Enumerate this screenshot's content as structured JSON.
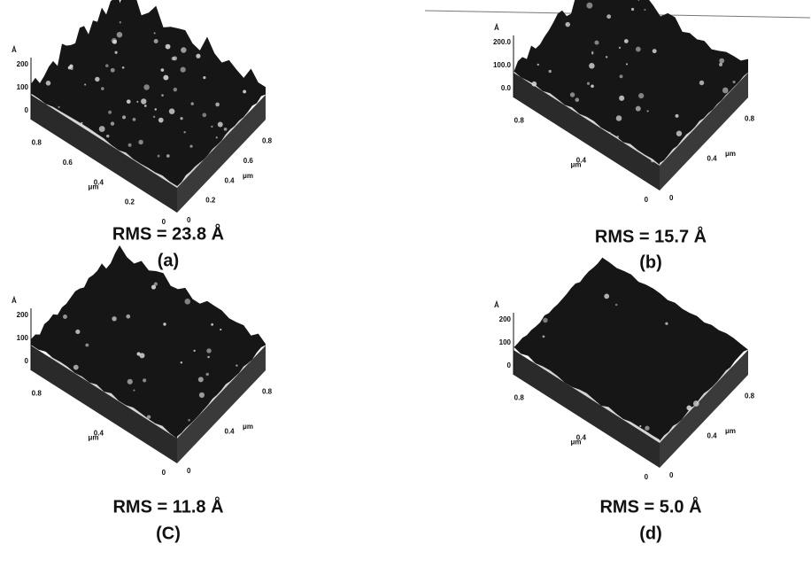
{
  "panels": [
    {
      "caption": "RMS = 23.8 Å",
      "label": "(a)",
      "z_unit": "Å",
      "z_ticks": [
        "200",
        "100",
        "0"
      ],
      "left_ticks": [
        "0.8",
        "0.6",
        "0.4",
        "0.2",
        "0"
      ],
      "right_ticks": [
        "0",
        "0.2",
        "0.4",
        "0.6",
        "0.8"
      ],
      "x_unit": "μm",
      "y_unit": "μm"
    },
    {
      "caption": "RMS = 15.7 Å",
      "label": "(b)",
      "z_unit": "Å",
      "z_ticks": [
        "200.0",
        "100.0",
        "0.0"
      ],
      "left_ticks": [
        "0.8",
        "0.4",
        "0"
      ],
      "right_ticks": [
        "0",
        "0.4",
        "0.8"
      ],
      "x_unit": "μm",
      "y_unit": "μm"
    },
    {
      "caption": "RMS = 11.8 Å",
      "label": "(C)",
      "z_unit": "Å",
      "z_ticks": [
        "200",
        "100",
        "0"
      ],
      "left_ticks": [
        "0.8",
        "0.4",
        "0"
      ],
      "right_ticks": [
        "0",
        "0.4",
        "0.8"
      ],
      "x_unit": "μm",
      "y_unit": "μm"
    },
    {
      "caption": "RMS = 5.0 Å",
      "label": "(d)",
      "z_unit": "Å",
      "z_ticks": [
        "200",
        "100",
        "0"
      ],
      "left_ticks": [
        "0.8",
        "0.4",
        "0"
      ],
      "right_ticks": [
        "0",
        "0.4",
        "0.8"
      ],
      "x_unit": "μm",
      "y_unit": "μm"
    }
  ]
}
